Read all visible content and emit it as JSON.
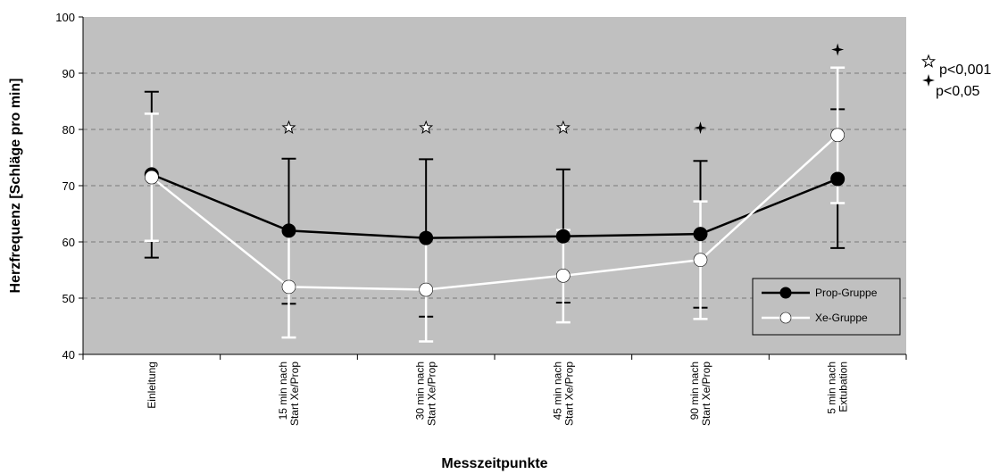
{
  "chart_data": {
    "type": "line",
    "title": "",
    "xlabel": "Messzeitpunkte",
    "ylabel": "Herzfrequenz [Schläge pro min]",
    "ylim": [
      40,
      100
    ],
    "yticks": [
      40,
      50,
      60,
      70,
      80,
      90,
      100
    ],
    "grid": "horizontal dashed",
    "categories": [
      [
        "Einleitung"
      ],
      [
        "15 min nach",
        "Start Xe/Prop"
      ],
      [
        "30 min nach",
        "Start Xe/Prop"
      ],
      [
        "45 min nach",
        "Start Xe/Prop"
      ],
      [
        "90 min nach",
        "Start Xe/Prop"
      ],
      [
        "5 min nach",
        "Extubation"
      ]
    ],
    "series": [
      {
        "name": "Prop-Gruppe",
        "color": "#000000",
        "values": [
          72,
          62,
          60.7,
          61,
          61.4,
          71.2
        ],
        "error_upper": [
          86.7,
          74.8,
          74.7,
          72.9,
          74.4,
          83.6
        ],
        "error_lower": [
          57.2,
          49,
          46.7,
          49.2,
          48.3,
          58.9
        ]
      },
      {
        "name": "Xe-Gruppe",
        "color": "#ffffff",
        "values": [
          71.5,
          52,
          51.5,
          54,
          56.8,
          79
        ],
        "error_upper": [
          82.8,
          62,
          61,
          62.1,
          67.2,
          91
        ],
        "error_lower": [
          60.2,
          43,
          42.3,
          45.7,
          46.3,
          66.9
        ]
      }
    ],
    "significance_markers": [
      {
        "index": 1,
        "symbol": "star",
        "y": 80.3
      },
      {
        "index": 2,
        "symbol": "star",
        "y": 80.3
      },
      {
        "index": 3,
        "symbol": "star",
        "y": 80.3
      },
      {
        "index": 4,
        "symbol": "cross",
        "y": 80.3
      },
      {
        "index": 5,
        "symbol": "cross",
        "y": 94.2
      }
    ],
    "significance_legend": [
      {
        "symbol": "star",
        "label": "p<0,001"
      },
      {
        "symbol": "cross",
        "label": "p<0,05"
      }
    ],
    "legend_position": "bottom-right",
    "plot_background": "#c0c0c0"
  }
}
